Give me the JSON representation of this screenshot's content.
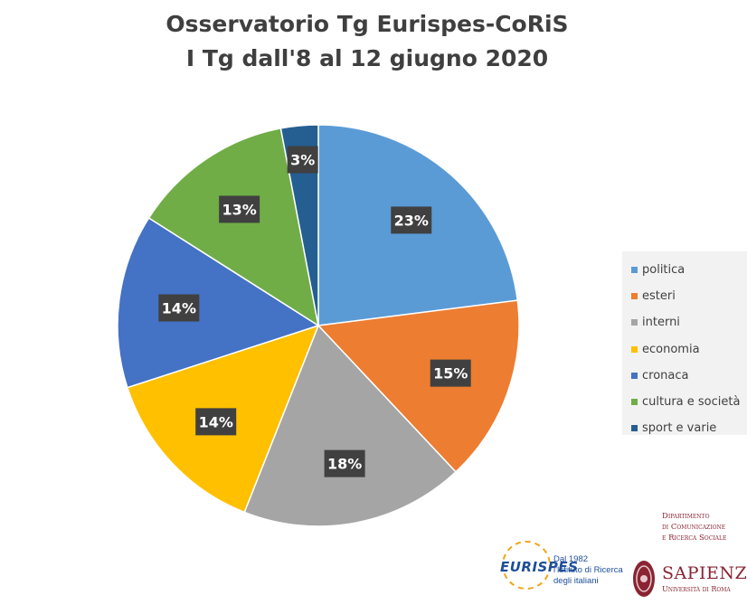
{
  "chart_data": {
    "type": "pie",
    "title": "Osservatorio Tg Eurispes-CoRiS",
    "subtitle": "I Tg dall'8 al 12 giugno 2020",
    "categories": [
      "politica",
      "esteri",
      "interni",
      "economia",
      "cronaca",
      "cultura e società",
      "sport e varie"
    ],
    "values": [
      23,
      15,
      18,
      14,
      14,
      13,
      3
    ],
    "value_labels": [
      "23%",
      "15%",
      "18%",
      "14%",
      "14%",
      "13%",
      "3%"
    ],
    "colors": [
      "#5b9bd5",
      "#ed7d31",
      "#a5a5a5",
      "#ffc000",
      "#4472c4",
      "#70ad47",
      "#255e91"
    ],
    "legend_position": "right",
    "label_style": "dark boxes with white bold text"
  },
  "logos": {
    "eurispes_name": "EURISPES",
    "eurispes_tagline": [
      "Dal 1982",
      "l'Istituto di Ricerca",
      "degli italiani"
    ],
    "dept_lines": [
      "Dipartimento",
      "di Comunicazione",
      "e Ricerca Sociale"
    ],
    "sapienza_name": "SAPIENZA",
    "sapienza_sub": "Università di Roma"
  }
}
